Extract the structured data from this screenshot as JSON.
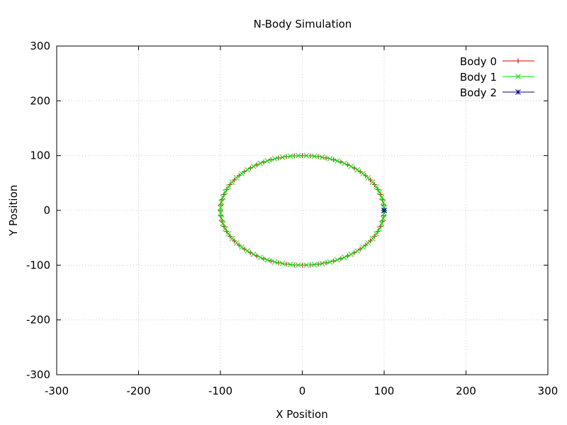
{
  "chart_data": {
    "type": "line",
    "title": "N-Body Simulation",
    "xlabel": "X Position",
    "ylabel": "Y Position",
    "xlim": [
      -300,
      300
    ],
    "ylim": [
      -300,
      300
    ],
    "xticks": [
      -300,
      -200,
      -100,
      0,
      100,
      200,
      300
    ],
    "yticks": [
      -300,
      -200,
      -100,
      0,
      100,
      200,
      300
    ],
    "xtick_labels": [
      "-300",
      "-200",
      "-100",
      "0",
      "100",
      "200",
      "300"
    ],
    "ytick_labels": [
      "-300",
      "-200",
      "-100",
      "0",
      "100",
      "200",
      "300"
    ],
    "grid": true,
    "legend_position": "top-right",
    "series": [
      {
        "name": "Body 0",
        "color": "#cc0000",
        "marker": "plus",
        "shape": "circle",
        "center": [
          0,
          0
        ],
        "radius": 100,
        "points": 64
      },
      {
        "name": "Body 1",
        "color": "#00e000",
        "marker": "cross",
        "shape": "circle",
        "center": [
          0,
          0
        ],
        "radius": 100,
        "points": 64,
        "phase_offset_deg": 2.8
      },
      {
        "name": "Body 2",
        "color": "#000099",
        "marker": "star",
        "x": [
          100,
          100,
          100
        ],
        "y": [
          0,
          0,
          0
        ]
      }
    ]
  }
}
